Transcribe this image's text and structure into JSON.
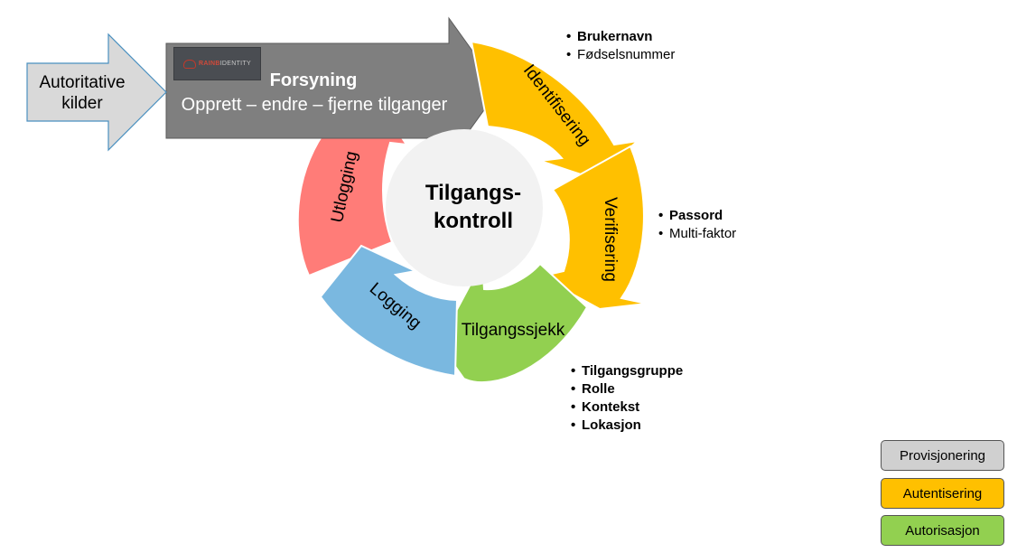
{
  "source_arrow": {
    "line1": "Autoritative",
    "line2": "kilder"
  },
  "provisioning_arrow": {
    "title": "Forsyning",
    "subtitle": "Opprett – endre – fjerne tilganger"
  },
  "logo": {
    "brand": "RAINB",
    "name": "IDENTITY"
  },
  "center": {
    "line1": "Tilgangs-",
    "line2": "kontroll"
  },
  "cycle_steps": {
    "identification": "Identifisering",
    "verification": "Verifisering",
    "access_check": "Tilgangssjekk",
    "logging": "Logging",
    "logout": "Utlogging"
  },
  "bullets": {
    "identification": [
      "Brukernavn",
      "Fødselsnummer"
    ],
    "verification": [
      "Passord",
      "Multi-faktor"
    ],
    "access_check": [
      "Tilgangsgruppe",
      "Rolle",
      "Kontekst",
      "Lokasjon"
    ]
  },
  "legend": [
    {
      "label": "Provisjonering",
      "color": "#d0d0d0"
    },
    {
      "label": "Autentisering",
      "color": "#ffc000"
    },
    {
      "label": "Autorisasjon",
      "color": "#92d050"
    }
  ],
  "colors": {
    "identification": "#ffc000",
    "verification": "#ffc000",
    "access_check": "#92d050",
    "logging": "#7ab8e0",
    "logout": "#ff7c78",
    "provisioning": "#7f7f7f",
    "source": "#d9d9d9",
    "center": "#f2f2f2"
  }
}
